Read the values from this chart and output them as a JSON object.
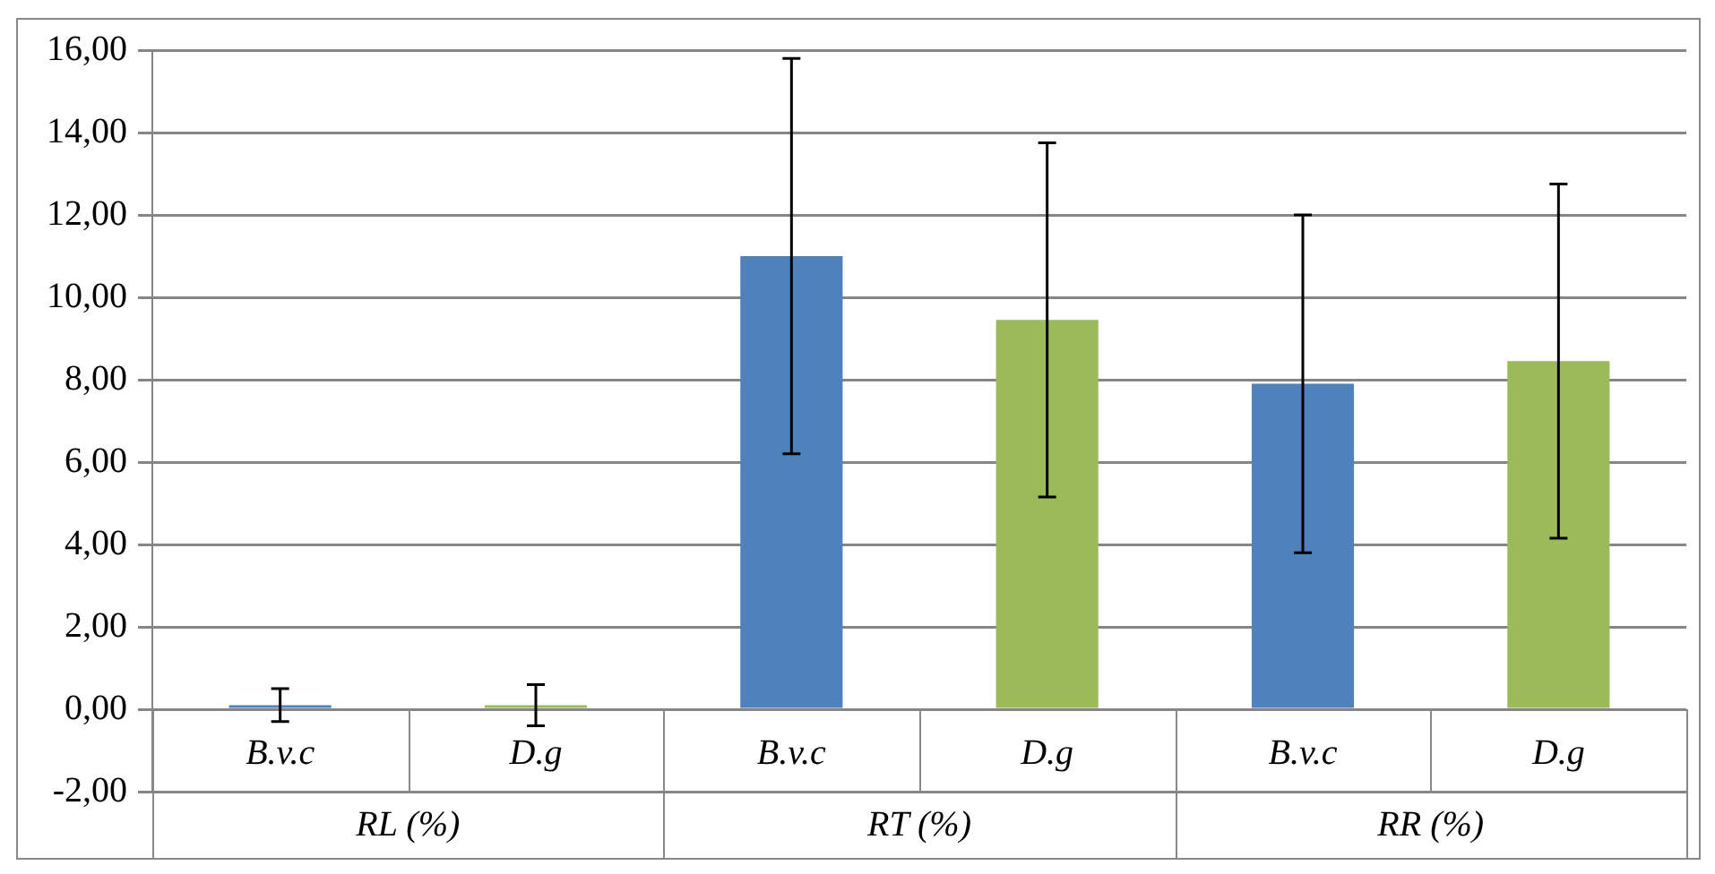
{
  "chart_data": {
    "type": "bar",
    "categories": [
      "RL (%)",
      "RT (%)",
      "RR (%)"
    ],
    "series": [
      {
        "name": "B.v.c",
        "color": "#4f81bd",
        "values": [
          0.1,
          11.0,
          7.9
        ],
        "errors": [
          0.4,
          4.8,
          4.1
        ]
      },
      {
        "name": "D.g",
        "color": "#9bbb59",
        "values": [
          0.1,
          9.45,
          8.45
        ],
        "errors": [
          0.5,
          4.3,
          4.3
        ]
      }
    ],
    "ylim": [
      -2,
      16
    ],
    "yticks": [
      {
        "value": -2,
        "label": "-2,00"
      },
      {
        "value": 0,
        "label": "0,00"
      },
      {
        "value": 2,
        "label": "2,00"
      },
      {
        "value": 4,
        "label": "4,00"
      },
      {
        "value": 6,
        "label": "6,00"
      },
      {
        "value": 8,
        "label": "8,00"
      },
      {
        "value": 10,
        "label": "10,00"
      },
      {
        "value": 12,
        "label": "12,00"
      },
      {
        "value": 14,
        "label": "14,00"
      },
      {
        "value": 16,
        "label": "16,00"
      }
    ],
    "grid": "y",
    "legend": false
  }
}
